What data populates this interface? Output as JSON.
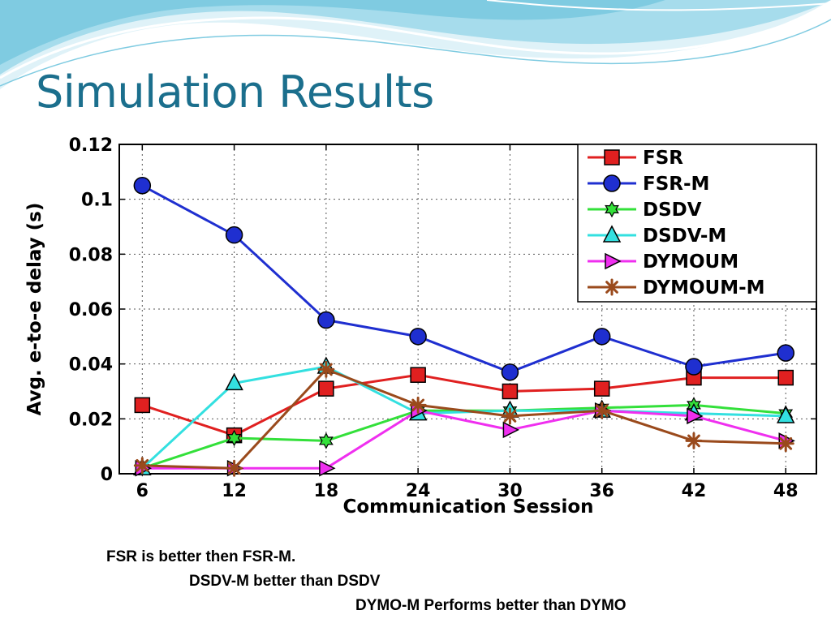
{
  "slide": {
    "title": "Simulation Results",
    "captions": [
      "FSR is better then FSR-M.",
      "DSDV-M better than DSDV",
      "DYMO-M Performs better than DYMO"
    ]
  },
  "colors": {
    "title": "#1b6f8d",
    "wave_dark": "#7fcbe1",
    "wave_light": "#cdeaf3"
  },
  "chart_data": {
    "type": "line",
    "title": "",
    "xlabel": "Communication Session",
    "ylabel": "Avg. e-to-e delay (s)",
    "x": [
      6,
      12,
      18,
      24,
      30,
      36,
      42,
      48
    ],
    "x_ticks": [
      "6",
      "12",
      "18",
      "24",
      "30",
      "36",
      "42",
      "48"
    ],
    "xlim": [
      4.5,
      50
    ],
    "ylim": [
      0,
      0.12
    ],
    "y_ticks": [
      "0",
      "0.02",
      "0.04",
      "0.06",
      "0.08",
      "0.1",
      "0.12"
    ],
    "grid": true,
    "legend_position": "top-right",
    "series": [
      {
        "name": "FSR",
        "color": "#e02020",
        "marker": "square",
        "values": [
          0.025,
          0.014,
          0.031,
          0.036,
          0.03,
          0.031,
          0.035,
          0.035
        ]
      },
      {
        "name": "FSR-M",
        "color": "#1f2fd0",
        "marker": "circle",
        "values": [
          0.105,
          0.087,
          0.056,
          0.05,
          0.037,
          0.05,
          0.039,
          0.044
        ]
      },
      {
        "name": "DSDV",
        "color": "#33e03a",
        "marker": "hexagram",
        "values": [
          0.002,
          0.013,
          0.012,
          0.023,
          0.023,
          0.024,
          0.025,
          0.022
        ]
      },
      {
        "name": "DSDV-M",
        "color": "#33e0e0",
        "marker": "triangle-up",
        "values": [
          0.002,
          0.033,
          0.039,
          0.022,
          0.023,
          0.023,
          0.022,
          0.021
        ]
      },
      {
        "name": "DYMOUM",
        "color": "#ef2fef",
        "marker": "triangle-right",
        "values": [
          0.002,
          0.002,
          0.002,
          0.023,
          0.016,
          0.023,
          0.021,
          0.012
        ]
      },
      {
        "name": "DYMOUM-M",
        "color": "#9a4a1c",
        "marker": "asterisk",
        "values": [
          0.003,
          0.002,
          0.038,
          0.025,
          0.021,
          0.023,
          0.012,
          0.011
        ]
      }
    ]
  }
}
